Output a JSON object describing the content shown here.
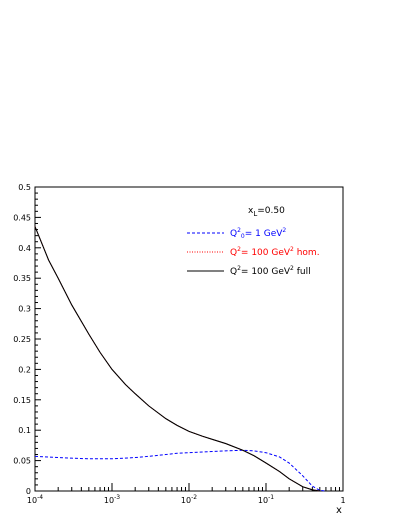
{
  "chart_data": {
    "type": "line",
    "xscale": "log",
    "xlim": [
      0.0001,
      1
    ],
    "ylim": [
      0,
      0.5
    ],
    "xlabel": "x",
    "ylabel": "",
    "grid": false,
    "annotation": {
      "x_L": "0.50"
    },
    "x_ticks": [
      {
        "value": 0.0001,
        "base": "10",
        "exp": "-4"
      },
      {
        "value": 0.001,
        "base": "10",
        "exp": "-3"
      },
      {
        "value": 0.01,
        "base": "10",
        "exp": "-2"
      },
      {
        "value": 0.1,
        "base": "10",
        "exp": "-1"
      },
      {
        "value": 1,
        "base": "1",
        "exp": ""
      }
    ],
    "y_ticks": [
      {
        "value": 0,
        "label": "0"
      },
      {
        "value": 0.05,
        "label": "0.05"
      },
      {
        "value": 0.1,
        "label": "0.1"
      },
      {
        "value": 0.15,
        "label": "0.15"
      },
      {
        "value": 0.2,
        "label": "0.2"
      },
      {
        "value": 0.25,
        "label": "0.25"
      },
      {
        "value": 0.3,
        "label": "0.3"
      },
      {
        "value": 0.35,
        "label": "0.35"
      },
      {
        "value": 0.4,
        "label": "0.4"
      },
      {
        "value": 0.45,
        "label": "0.45"
      },
      {
        "value": 0.5,
        "label": "0.5"
      }
    ],
    "legend_position": "top-right",
    "series": [
      {
        "legend": {
          "pre": "Q",
          "sup1": "2",
          "sub": "0",
          "mid": "= 1 GeV",
          "sup2": "2",
          "post": ""
        },
        "color": "#0000ff",
        "style": "dashed",
        "points": [
          [
            0.0001,
            0.057
          ],
          [
            0.0002,
            0.055
          ],
          [
            0.0003,
            0.054
          ],
          [
            0.0005,
            0.053
          ],
          [
            0.0007,
            0.053
          ],
          [
            0.001,
            0.053
          ],
          [
            0.002,
            0.055
          ],
          [
            0.003,
            0.057
          ],
          [
            0.005,
            0.06
          ],
          [
            0.007,
            0.062
          ],
          [
            0.01,
            0.063
          ],
          [
            0.02,
            0.065
          ],
          [
            0.03,
            0.066
          ],
          [
            0.05,
            0.067
          ],
          [
            0.07,
            0.066
          ],
          [
            0.1,
            0.063
          ],
          [
            0.15,
            0.056
          ],
          [
            0.2,
            0.046
          ],
          [
            0.3,
            0.025
          ],
          [
            0.4,
            0.008
          ],
          [
            0.5,
            0.001
          ],
          [
            0.6,
            0.0
          ]
        ]
      },
      {
        "legend": {
          "pre": "Q",
          "sup1": "2",
          "sub": "",
          "mid": "= 100 GeV",
          "sup2": "2",
          "post": " hom."
        },
        "color": "#ff0000",
        "style": "dotted",
        "points": [
          [
            0.0001,
            0.435
          ],
          [
            0.00015,
            0.38
          ],
          [
            0.0002,
            0.35
          ],
          [
            0.0003,
            0.306
          ],
          [
            0.0005,
            0.258
          ],
          [
            0.0007,
            0.228
          ],
          [
            0.001,
            0.2
          ],
          [
            0.0015,
            0.175
          ],
          [
            0.002,
            0.16
          ],
          [
            0.003,
            0.14
          ],
          [
            0.005,
            0.119
          ],
          [
            0.007,
            0.108
          ],
          [
            0.01,
            0.098
          ],
          [
            0.015,
            0.09
          ],
          [
            0.02,
            0.085
          ],
          [
            0.03,
            0.078
          ],
          [
            0.05,
            0.067
          ],
          [
            0.07,
            0.058
          ],
          [
            0.1,
            0.046
          ],
          [
            0.15,
            0.032
          ],
          [
            0.2,
            0.02
          ],
          [
            0.3,
            0.007
          ],
          [
            0.4,
            0.002
          ],
          [
            0.5,
            0.0
          ]
        ]
      },
      {
        "legend": {
          "pre": "Q",
          "sup1": "2",
          "sub": "",
          "mid": "= 100 GeV",
          "sup2": "2",
          "post": " full"
        },
        "color": "#000000",
        "style": "solid",
        "points": [
          [
            0.0001,
            0.435
          ],
          [
            0.00015,
            0.38
          ],
          [
            0.0002,
            0.35
          ],
          [
            0.0003,
            0.306
          ],
          [
            0.0005,
            0.258
          ],
          [
            0.0007,
            0.228
          ],
          [
            0.001,
            0.2
          ],
          [
            0.0015,
            0.175
          ],
          [
            0.002,
            0.16
          ],
          [
            0.003,
            0.14
          ],
          [
            0.005,
            0.119
          ],
          [
            0.007,
            0.108
          ],
          [
            0.01,
            0.098
          ],
          [
            0.015,
            0.09
          ],
          [
            0.02,
            0.085
          ],
          [
            0.03,
            0.078
          ],
          [
            0.05,
            0.067
          ],
          [
            0.07,
            0.058
          ],
          [
            0.1,
            0.046
          ],
          [
            0.15,
            0.032
          ],
          [
            0.2,
            0.02
          ],
          [
            0.3,
            0.007
          ],
          [
            0.4,
            0.002
          ],
          [
            0.5,
            0.0
          ]
        ]
      }
    ]
  }
}
